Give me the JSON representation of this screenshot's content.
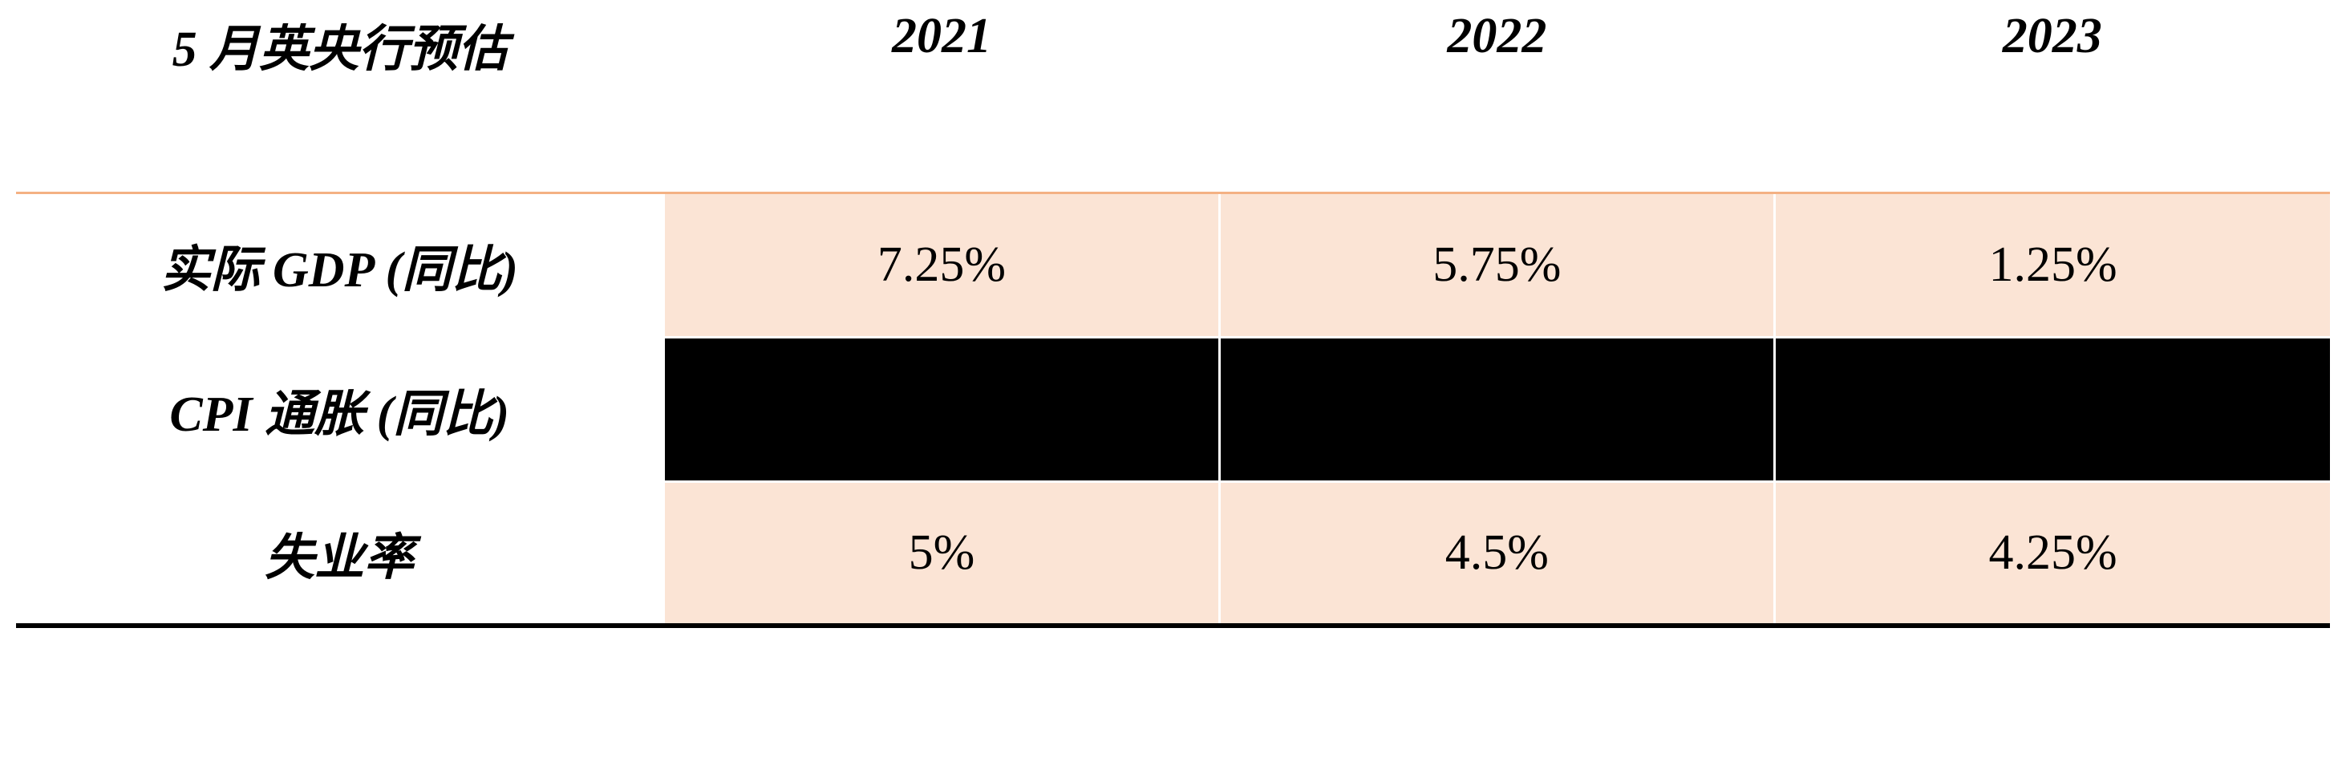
{
  "table": {
    "type": "table",
    "background_color": "#ffffff",
    "header_bg": "#ffffff",
    "data_cell_bg": "#fbe4d5",
    "redacted_cell_bg": "#000000",
    "header_border_color": "#f4b183",
    "cell_border_color": "#ffffff",
    "bottom_border_color": "#000000",
    "font_family": "Times New Roman, SimSun, serif",
    "header_fontsize": 62,
    "header_fontweight": "bold",
    "header_fontstyle": "italic",
    "row_label_fontweight": "bold",
    "row_label_fontstyle": "italic",
    "data_fontweight": "normal",
    "columns": [
      {
        "label": "5 月英央行预估",
        "width_pct": 28,
        "align": "center"
      },
      {
        "label": "2021",
        "width_pct": 24,
        "align": "center"
      },
      {
        "label": "2022",
        "width_pct": 24,
        "align": "center"
      },
      {
        "label": "2023",
        "width_pct": 24,
        "align": "center"
      }
    ],
    "rows": [
      {
        "label": "实际 GDP (同比)",
        "cells": [
          "7.25%",
          "5.75%",
          "1.25%"
        ],
        "redacted": false
      },
      {
        "label": "CPI 通胀 (同比)",
        "cells": [
          "",
          "",
          ""
        ],
        "redacted": true
      },
      {
        "label": "失业率",
        "cells": [
          "5%",
          "4.5%",
          "4.25%"
        ],
        "redacted": false
      }
    ]
  }
}
